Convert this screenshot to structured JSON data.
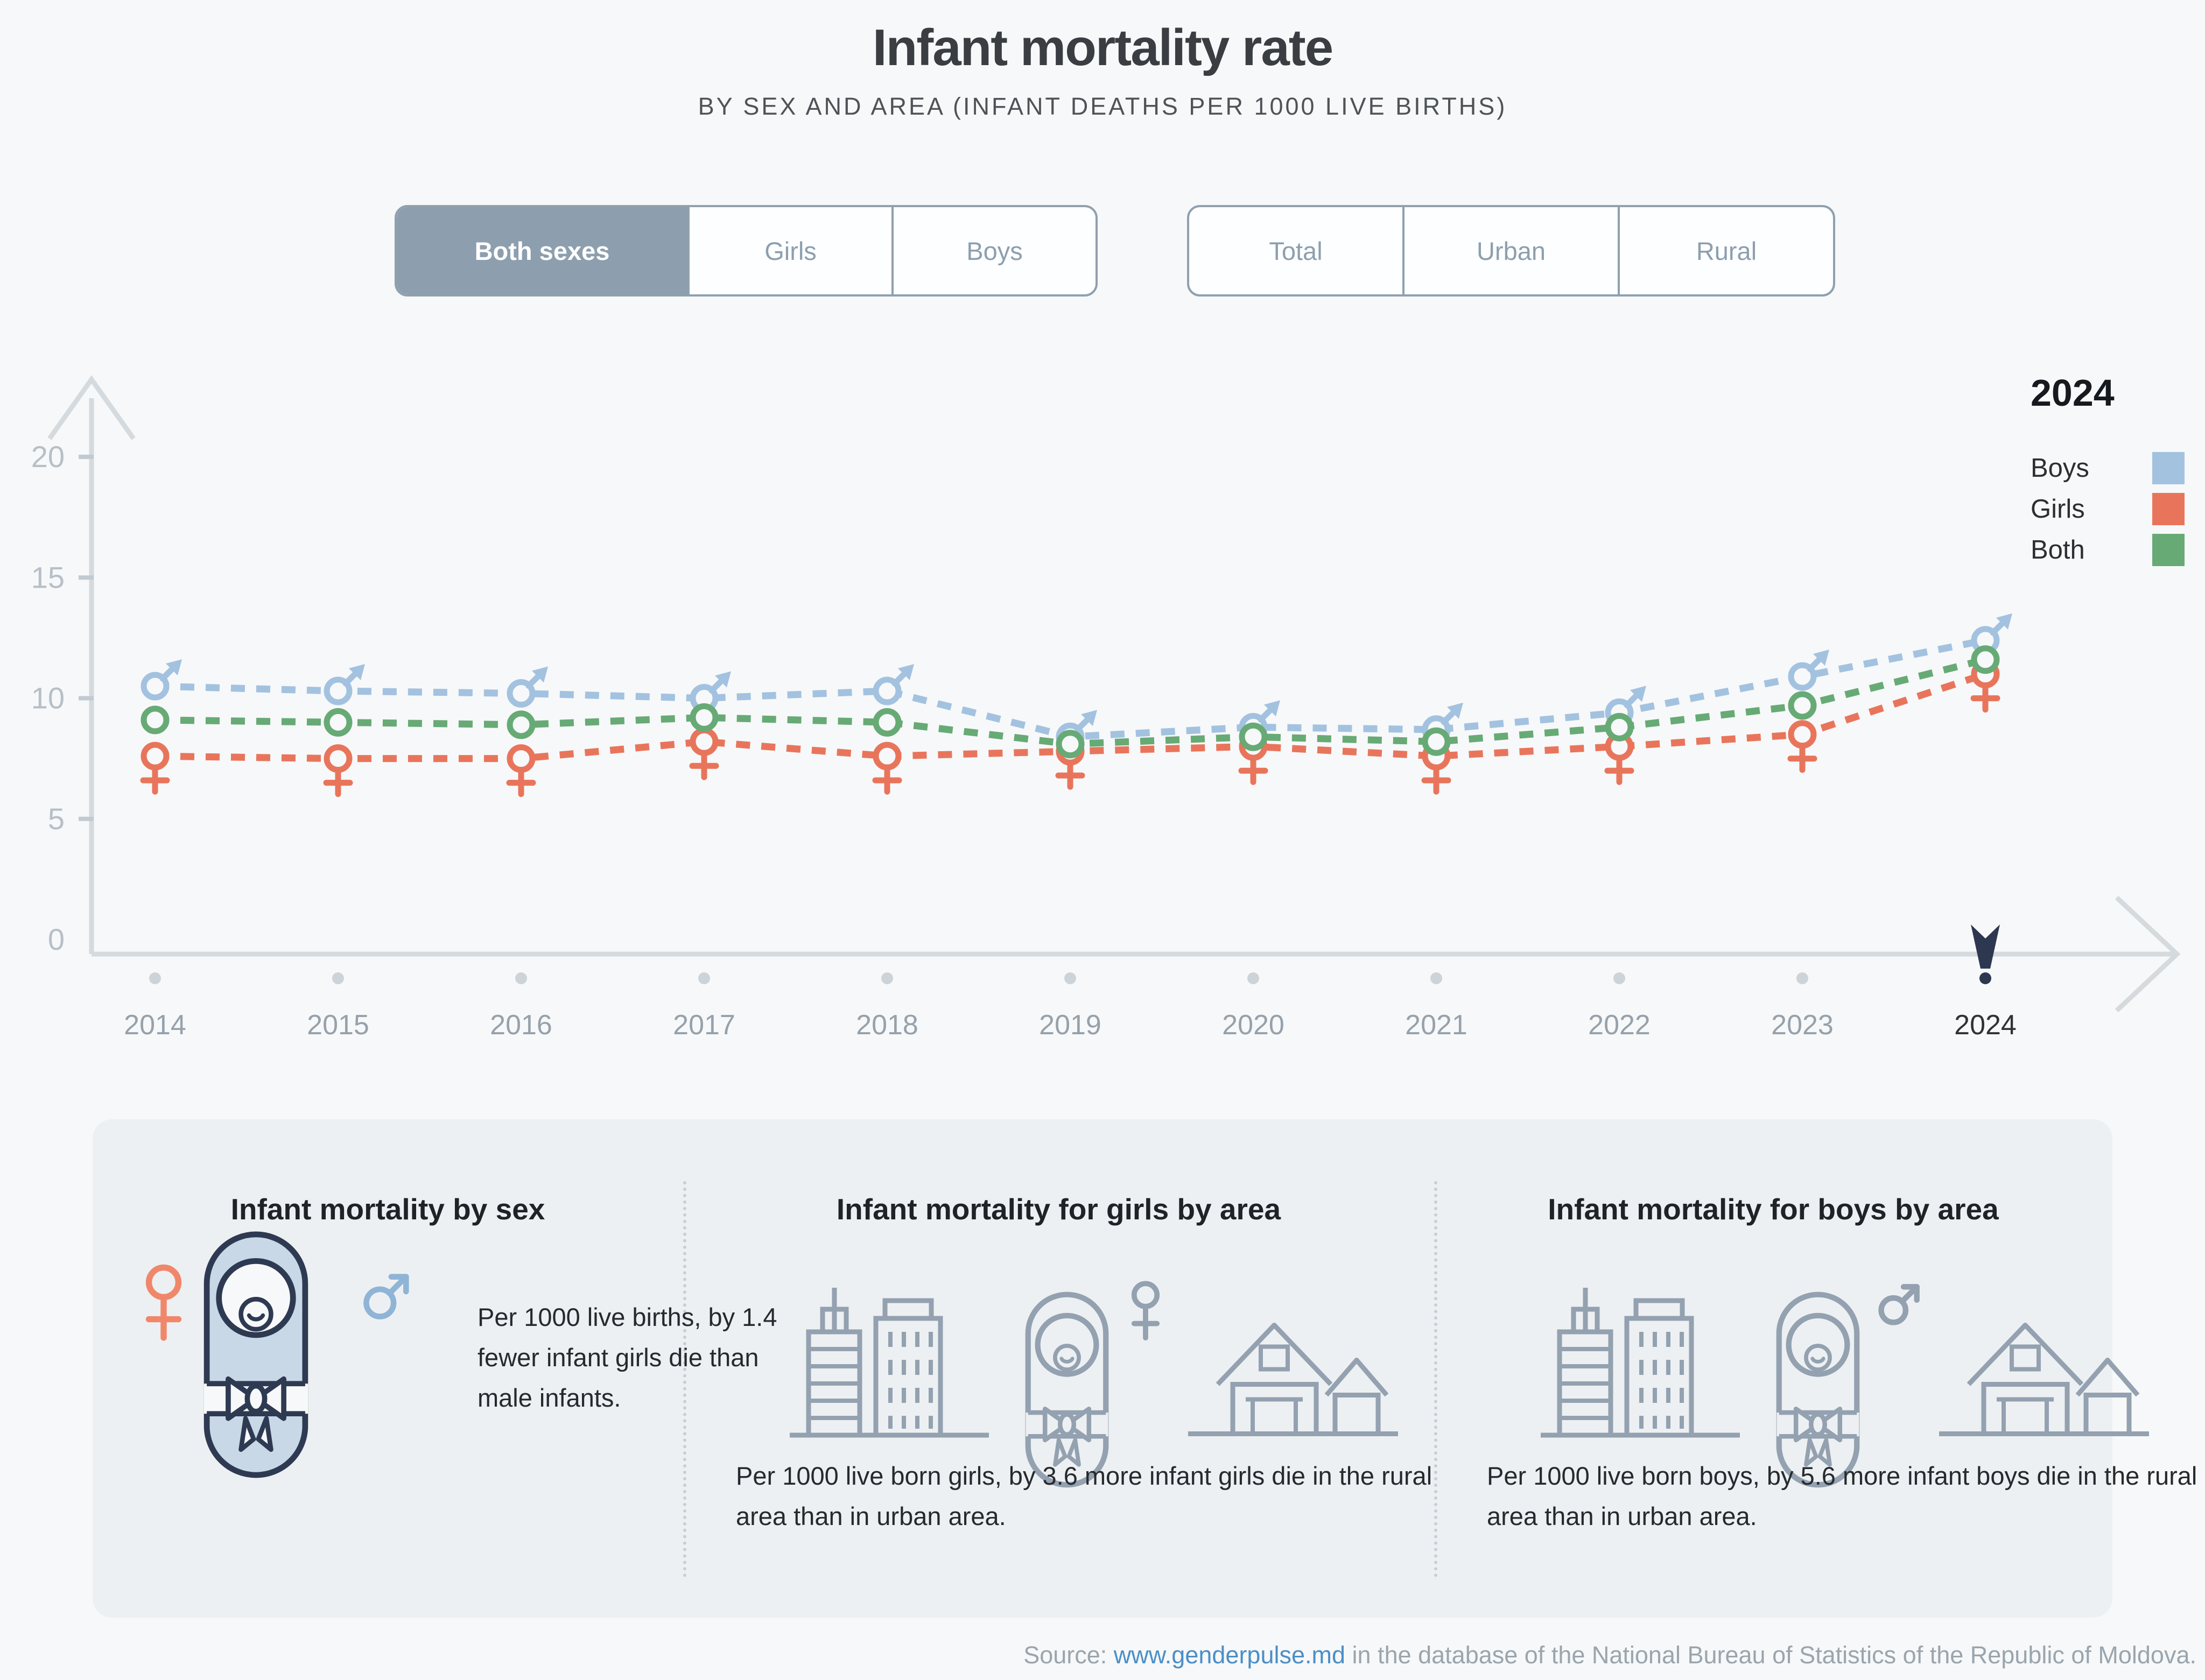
{
  "header": {
    "title": "Infant mortality rate",
    "subtitle": "BY SEX AND AREA (INFANT DEATHS PER 1000 LIVE BIRTHS)"
  },
  "filters": {
    "sex": {
      "options": [
        "Both sexes",
        "Girls",
        "Boys"
      ],
      "selected": "Both sexes"
    },
    "area": {
      "options": [
        "Total",
        "Urban",
        "Rural"
      ],
      "selected": null
    }
  },
  "legend": {
    "year": "2024",
    "entries": [
      {
        "label": "Boys",
        "color": "#a3c2e0"
      },
      {
        "label": "Girls",
        "color": "#e8755b"
      },
      {
        "label": "Both",
        "color": "#67aa75"
      }
    ]
  },
  "chart_data": {
    "type": "line",
    "x": [
      2014,
      2015,
      2016,
      2017,
      2018,
      2019,
      2020,
      2021,
      2022,
      2023,
      2024
    ],
    "series": [
      {
        "name": "Boys",
        "marker": "male",
        "color": "#a3c2e0",
        "values": [
          10.5,
          10.3,
          10.2,
          10.0,
          10.3,
          8.4,
          8.8,
          8.7,
          9.4,
          10.9,
          12.4
        ]
      },
      {
        "name": "Girls",
        "marker": "female",
        "color": "#e8755b",
        "values": [
          7.6,
          7.5,
          7.5,
          8.2,
          7.6,
          7.8,
          8.0,
          7.6,
          8.0,
          8.5,
          11.0
        ]
      },
      {
        "name": "Both",
        "marker": "circle",
        "color": "#67aa75",
        "values": [
          9.1,
          9.0,
          8.9,
          9.2,
          9.0,
          8.1,
          8.4,
          8.2,
          8.8,
          9.7,
          11.6
        ]
      }
    ],
    "title": "Infant mortality rate",
    "xlabel": "",
    "ylabel": "",
    "ylim": [
      0,
      20
    ],
    "yticks": [
      0,
      5,
      10,
      15,
      20
    ],
    "highlight_year": 2024,
    "grid": false,
    "legend_position": "top-right"
  },
  "cards": [
    {
      "title": "Infant mortality by sex",
      "text": "Per 1000 live births, by 1.4 fewer infant girls die than male infants."
    },
    {
      "title": "Infant mortality for girls by area",
      "text": "Per 1000 live born girls, by 3.6 more infant girls die in the rural area than in urban area."
    },
    {
      "title": "Infant mortality for boys by area",
      "text": "Per 1000 live born boys, by 5.6 more infant boys die in the rural area than in urban area."
    }
  ],
  "source": {
    "prefix": "Source: ",
    "link": "www.genderpulse.md",
    "suffix": " in the database of the National Bureau of Statistics of the Republic of Moldova."
  }
}
